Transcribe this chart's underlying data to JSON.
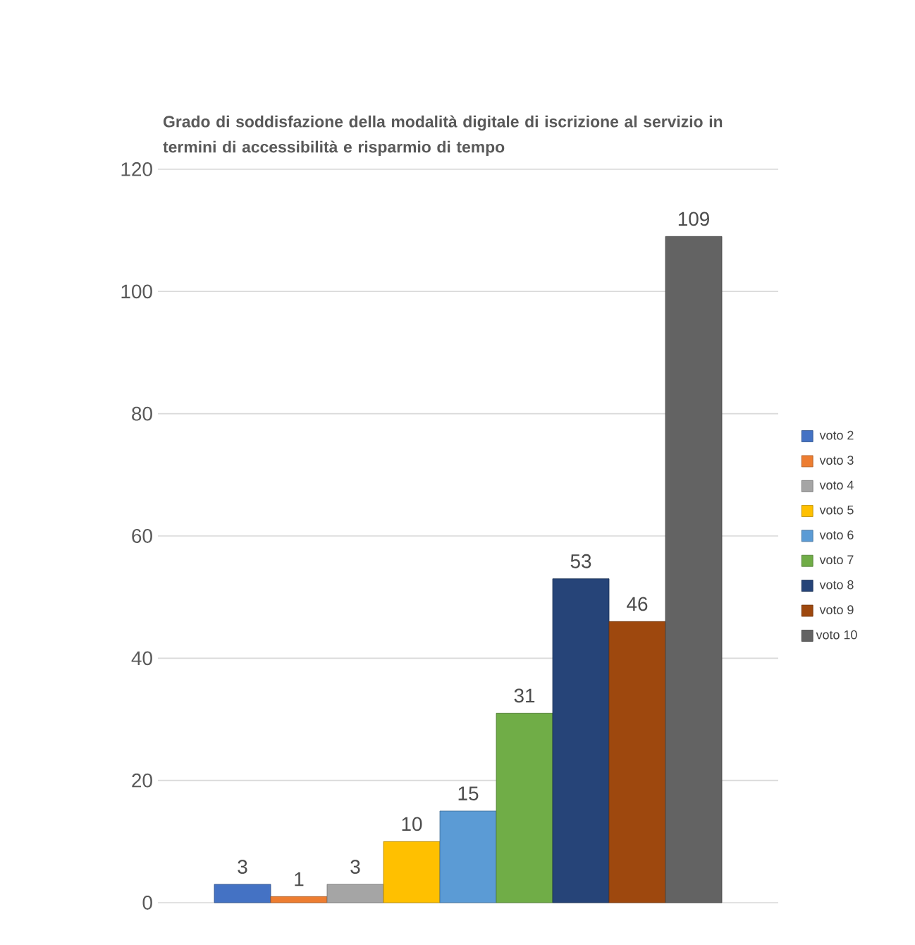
{
  "chart_data": {
    "type": "bar",
    "title": "Grado di soddisfazione della modalità digitale di iscrizione al servizio in termini di accessibilità e risparmio di tempo",
    "categories": [
      null
    ],
    "series": [
      {
        "name": "voto 2",
        "color": "#4472c4",
        "values": [
          3
        ]
      },
      {
        "name": "voto 3",
        "color": "#ed7d31",
        "values": [
          1
        ]
      },
      {
        "name": "voto 4",
        "color": "#a5a5a5",
        "values": [
          3
        ]
      },
      {
        "name": "voto 5",
        "color": "#ffc000",
        "values": [
          10
        ]
      },
      {
        "name": "voto 6",
        "color": "#5b9bd5",
        "values": [
          15
        ]
      },
      {
        "name": "voto 7",
        "color": "#70ad47",
        "values": [
          31
        ]
      },
      {
        "name": "voto 8",
        "color": "#264478",
        "values": [
          53
        ]
      },
      {
        "name": "voto 9",
        "color": "#9e480e",
        "values": [
          46
        ]
      },
      {
        "name": "voto 10",
        "color": "#636363",
        "values": [
          109
        ]
      }
    ],
    "ylim": [
      0,
      120
    ],
    "yticks": [
      0,
      20,
      40,
      60,
      80,
      100,
      120
    ],
    "grid": "y",
    "legend": "right",
    "data_labels": true
  }
}
